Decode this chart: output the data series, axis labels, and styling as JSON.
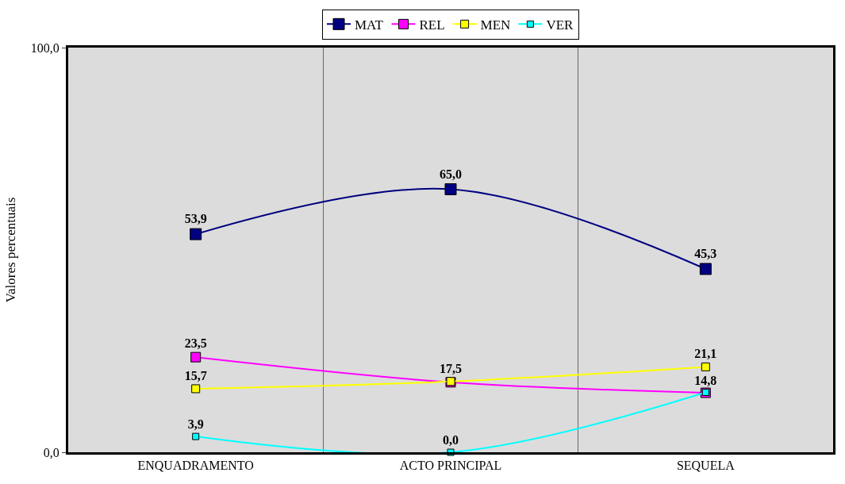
{
  "chart_data": {
    "type": "line",
    "ylabel": "Valores percentuais",
    "categories": [
      "ENQUADRAMENTO",
      "ACTO PRINCIPAL",
      "SEQUELA"
    ],
    "series": [
      {
        "name": "MAT",
        "color": "#000080",
        "values": [
          53.9,
          65.0,
          45.3
        ],
        "value_labels": [
          "53,9",
          "65,0",
          "45,3"
        ]
      },
      {
        "name": "REL",
        "color": "#ff00ff",
        "values": [
          23.5,
          17.3,
          14.7
        ],
        "value_labels": [
          "23,5",
          null,
          null
        ]
      },
      {
        "name": "MEN",
        "color": "#ffff00",
        "values": [
          15.7,
          17.5,
          21.1
        ],
        "value_labels": [
          "15,7",
          "17,5",
          "21,1"
        ]
      },
      {
        "name": "VER",
        "color": "#00ffff",
        "values": [
          3.9,
          0.0,
          14.8
        ],
        "value_labels": [
          "3,9",
          "0,0",
          "14,8"
        ]
      }
    ],
    "ylim": [
      0,
      100
    ],
    "yticks": [
      {
        "value": 0,
        "label": "0,0"
      },
      {
        "value": 100,
        "label": "100,0"
      }
    ],
    "grid": "x",
    "legend": "top",
    "marker": "square",
    "line_style": "solid"
  }
}
